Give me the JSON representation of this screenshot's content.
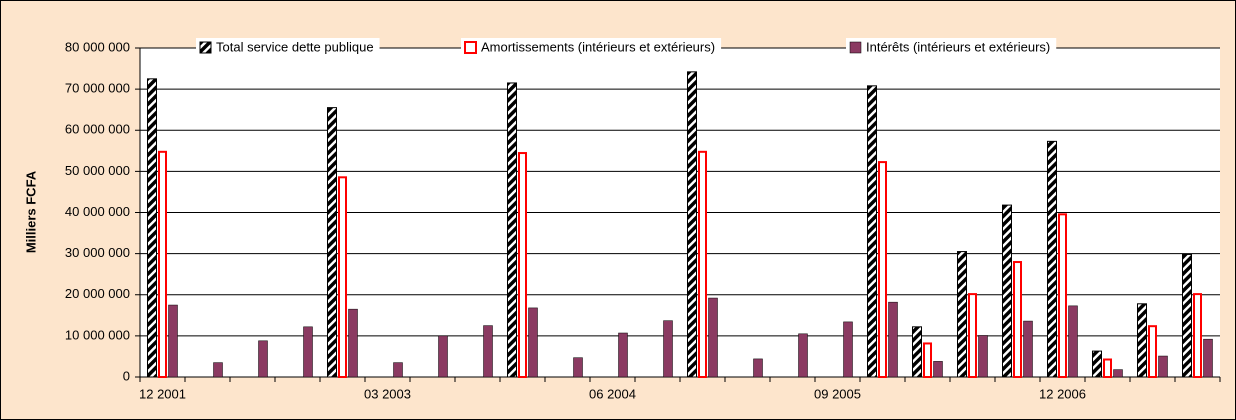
{
  "chart_data": {
    "type": "bar",
    "y_label": "Milliers FCFA",
    "categories": [
      "12 2001",
      null,
      null,
      null,
      null,
      "03 2003",
      null,
      null,
      null,
      null,
      "06 2004",
      null,
      null,
      null,
      null,
      "09 2005",
      null,
      null,
      null,
      null,
      "12 2006",
      null,
      null,
      null
    ],
    "series": [
      {
        "name": "Total service dette publique",
        "color": "#000000",
        "pattern": "hatch",
        "values": [
          72500000,
          null,
          null,
          null,
          65500000,
          null,
          null,
          null,
          71500000,
          null,
          null,
          null,
          74200000,
          null,
          null,
          null,
          70800000,
          12200000,
          30500000,
          41800000,
          57300000,
          6300000,
          17800000,
          29800000
        ]
      },
      {
        "name": "Amortissements (intérieurs et extérieurs)",
        "color": "#ff0000",
        "pattern": "outline",
        "values": [
          55000000,
          null,
          null,
          null,
          48800000,
          null,
          null,
          null,
          54700000,
          null,
          null,
          null,
          55000000,
          null,
          null,
          null,
          52500000,
          8400000,
          20400000,
          28200000,
          39800000,
          4500000,
          12600000,
          20400000
        ]
      },
      {
        "name": "Intérêts (intérieurs et extérieurs)",
        "color": "#8b3a62",
        "pattern": "solid",
        "values": [
          17500000,
          3500000,
          8800000,
          12200000,
          16500000,
          3500000,
          10000000,
          12500000,
          16800000,
          4700000,
          10700000,
          13700000,
          19200000,
          4400000,
          10500000,
          13400000,
          18200000,
          3800000,
          10100000,
          13600000,
          17300000,
          1800000,
          5100000,
          9200000
        ]
      }
    ],
    "ylim": [
      0,
      80000000
    ],
    "yticks": [
      {
        "value": 0,
        "label": "0"
      },
      {
        "value": 10000000,
        "label": "10 000 000"
      },
      {
        "value": 20000000,
        "label": "20 000 000"
      },
      {
        "value": 30000000,
        "label": "30 000 000"
      },
      {
        "value": 40000000,
        "label": "40 000 000"
      },
      {
        "value": 50000000,
        "label": "50 000 000"
      },
      {
        "value": 60000000,
        "label": "60 000 000"
      },
      {
        "value": 70000000,
        "label": "70 000 000"
      },
      {
        "value": 80000000,
        "label": "80 000 000"
      }
    ],
    "grid": true,
    "legend": "top"
  }
}
